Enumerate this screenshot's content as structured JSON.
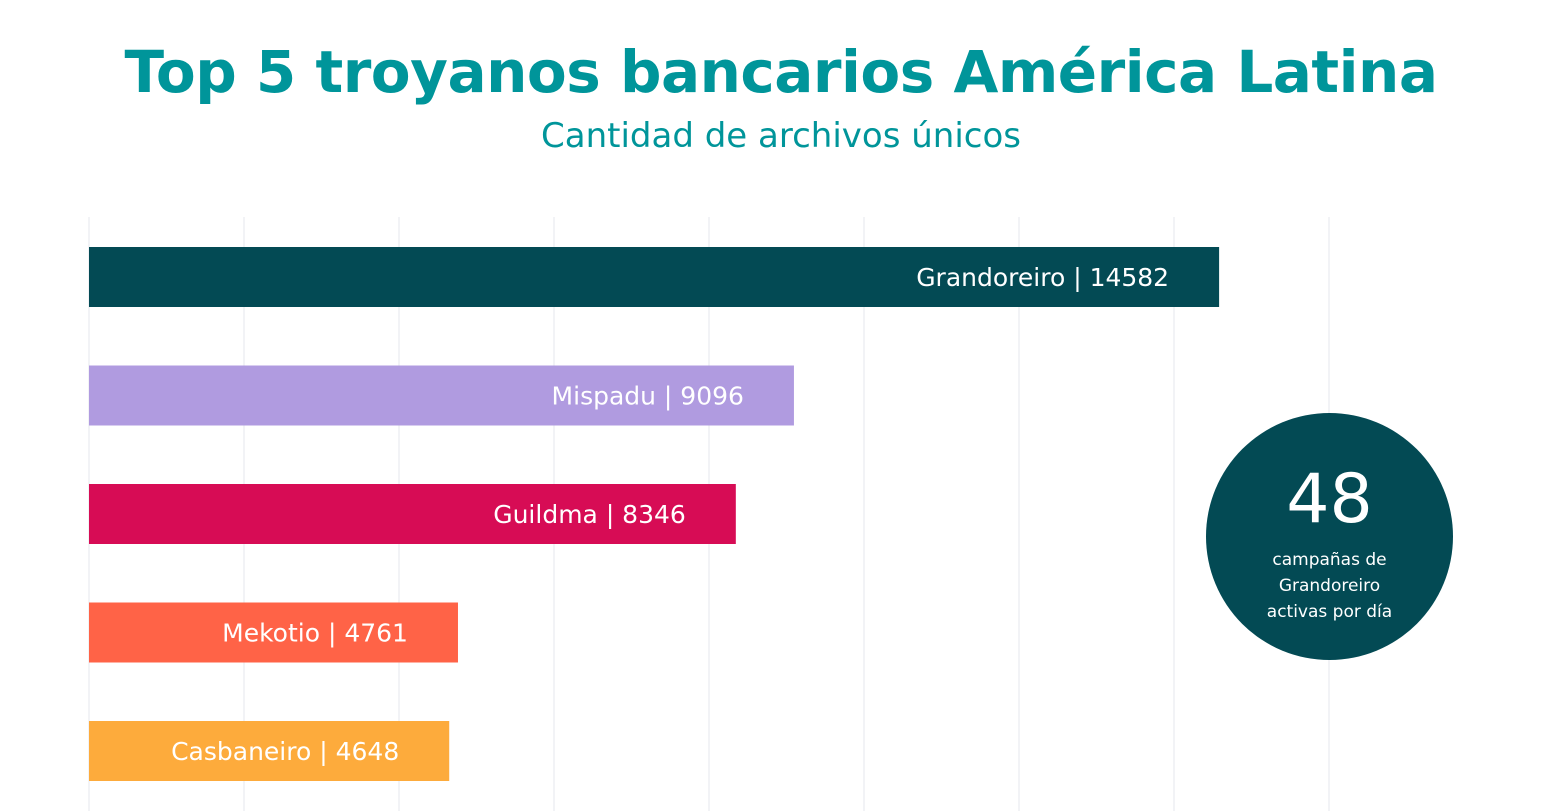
{
  "title": "Top 5 troyanos bancarios América Latina",
  "subtitle": "Cantidad de archivos únicos",
  "chart_data": {
    "type": "bar",
    "orientation": "horizontal",
    "title": "Top 5 troyanos bancarios América Latina",
    "subtitle": "Cantidad de archivos únicos",
    "categories": [
      "Grandoreiro",
      "Mispadu",
      "Guildma",
      "Mekotio",
      "Casbaneiro"
    ],
    "values": [
      14582,
      9096,
      8346,
      4761,
      4648
    ],
    "bar_labels": [
      "Grandoreiro | 14582",
      "Mispadu | 9096",
      "Guildma | 8346",
      "Mekotio | 4761",
      "Casbaneiro | 4648"
    ],
    "colors": [
      "#034a54",
      "#b09be0",
      "#d70c55",
      "#ff6347",
      "#fdab3c"
    ],
    "xlim": [
      0,
      16000
    ],
    "grid_step": 2000,
    "grid": true,
    "xlabel": "",
    "ylabel": "",
    "label_color": "#ffffff"
  },
  "badge": {
    "value": "48",
    "caption_lines": [
      "campañas de",
      "Grandoreiro",
      "activas por día"
    ],
    "color": "#034a54"
  }
}
